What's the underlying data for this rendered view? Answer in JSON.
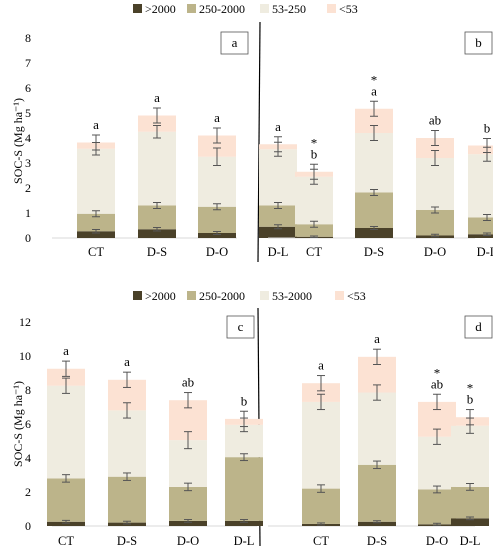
{
  "colors": {
    "gt2000": "#4a4129",
    "c250_2000": "#bcb48a",
    "c53": "#efece0",
    "lt53": "#fce2d3",
    "error": "#555555"
  },
  "chart_data": [
    {
      "type": "bar",
      "stacked": true,
      "legend": [
        ">2000",
        "250-2000",
        "53-250",
        "<53"
      ],
      "ylabel": "SOC-S  (Mg ha⁻¹)",
      "ylim": [
        0,
        8
      ],
      "yticks": [
        0,
        1,
        2,
        3,
        4,
        5,
        6,
        7,
        8
      ],
      "grid": false,
      "panels": [
        {
          "label": "a",
          "categories": [
            "CT",
            "D-S",
            "D-O",
            "D-L"
          ],
          "series": [
            {
              "name": ">2000",
              "values": [
                0.27,
                0.35,
                0.2,
                0.45
              ],
              "err": [
                0.07,
                0.07,
                0.06,
                0.08
              ]
            },
            {
              "name": "250-2000",
              "values": [
                0.7,
                0.95,
                1.05,
                0.85
              ],
              "err": [
                0.12,
                0.12,
                0.12,
                0.12
              ]
            },
            {
              "name": "53-250",
              "values": [
                2.6,
                2.95,
                2.0,
                2.25
              ],
              "err": [
                0.25,
                0.25,
                0.35,
                0.28
              ]
            },
            {
              "name": "<53",
              "values": [
                0.25,
                0.65,
                0.85,
                0.2
              ],
              "err": [
                0.3,
                0.3,
                0.3,
                0.3
              ]
            }
          ],
          "letters": [
            "a",
            "a",
            "a",
            "a"
          ],
          "stars": [
            "",
            "",
            "",
            ""
          ]
        },
        {
          "label": "b",
          "categories": [
            "CT",
            "D-S",
            "D-O",
            "D-L"
          ],
          "series": [
            {
              "name": ">2000",
              "values": [
                0.05,
                0.4,
                0.1,
                0.15
              ],
              "err": [
                0.03,
                0.06,
                0.05,
                0.05
              ]
            },
            {
              "name": "250-2000",
              "values": [
                0.5,
                1.42,
                1.02,
                0.67
              ],
              "err": [
                0.12,
                0.12,
                0.12,
                0.12
              ]
            },
            {
              "name": "53-250",
              "values": [
                1.9,
                2.38,
                2.08,
                2.53
              ],
              "err": [
                0.3,
                0.3,
                0.3,
                0.28
              ]
            },
            {
              "name": "<53",
              "values": [
                0.2,
                0.97,
                0.8,
                0.35
              ],
              "err": [
                0.3,
                0.3,
                0.3,
                0.28
              ]
            }
          ],
          "letters": [
            "b",
            "a",
            "ab",
            "b"
          ],
          "stars": [
            "*",
            "*",
            "",
            ""
          ]
        }
      ]
    },
    {
      "type": "bar",
      "stacked": true,
      "legend": [
        ">2000",
        "250-2000",
        "53-2000",
        "<53"
      ],
      "ylabel": "SOC-S  (Mg ha⁻¹)",
      "ylim": [
        0,
        12
      ],
      "yticks": [
        0,
        2,
        4,
        6,
        8,
        10,
        12
      ],
      "grid": false,
      "panels": [
        {
          "label": "c",
          "categories": [
            "CT",
            "D-S",
            "D-O",
            "D-L"
          ],
          "series": [
            {
              "name": ">2000",
              "values": [
                0.25,
                0.2,
                0.3,
                0.3
              ],
              "err": [
                0.08,
                0.08,
                0.08,
                0.08
              ]
            },
            {
              "name": "250-2000",
              "values": [
                2.55,
                2.7,
                2.0,
                3.75
              ],
              "err": [
                0.22,
                0.22,
                0.22,
                0.2
              ]
            },
            {
              "name": "53-2000",
              "values": [
                5.45,
                3.9,
                2.75,
                1.9
              ],
              "err": [
                0.45,
                0.45,
                0.5,
                0.4
              ]
            },
            {
              "name": "<53",
              "values": [
                1.0,
                1.8,
                2.35,
                0.35
              ],
              "err": [
                0.45,
                0.45,
                0.45,
                0.45
              ]
            }
          ],
          "letters": [
            "a",
            "a",
            "ab",
            "b"
          ],
          "stars": [
            "",
            "",
            "",
            ""
          ]
        },
        {
          "label": "d",
          "categories": [
            "CT",
            "D-S",
            "D-O",
            "D-L"
          ],
          "series": [
            {
              "name": ">2000",
              "values": [
                0.12,
                0.25,
                0.1,
                0.45
              ],
              "err": [
                0.06,
                0.06,
                0.06,
                0.08
              ]
            },
            {
              "name": "250-2000",
              "values": [
                2.08,
                3.35,
                2.05,
                1.85
              ],
              "err": [
                0.22,
                0.22,
                0.2,
                0.2
              ]
            },
            {
              "name": "53-2000",
              "values": [
                5.1,
                4.25,
                3.1,
                3.6
              ],
              "err": [
                0.45,
                0.45,
                0.45,
                0.45
              ]
            },
            {
              "name": "<53",
              "values": [
                1.1,
                2.1,
                2.05,
                0.5
              ],
              "err": [
                0.45,
                0.45,
                0.45,
                0.45
              ]
            }
          ],
          "letters": [
            "a",
            "a",
            "ab",
            "b"
          ],
          "stars": [
            "",
            "",
            "*",
            "*"
          ]
        }
      ]
    }
  ]
}
